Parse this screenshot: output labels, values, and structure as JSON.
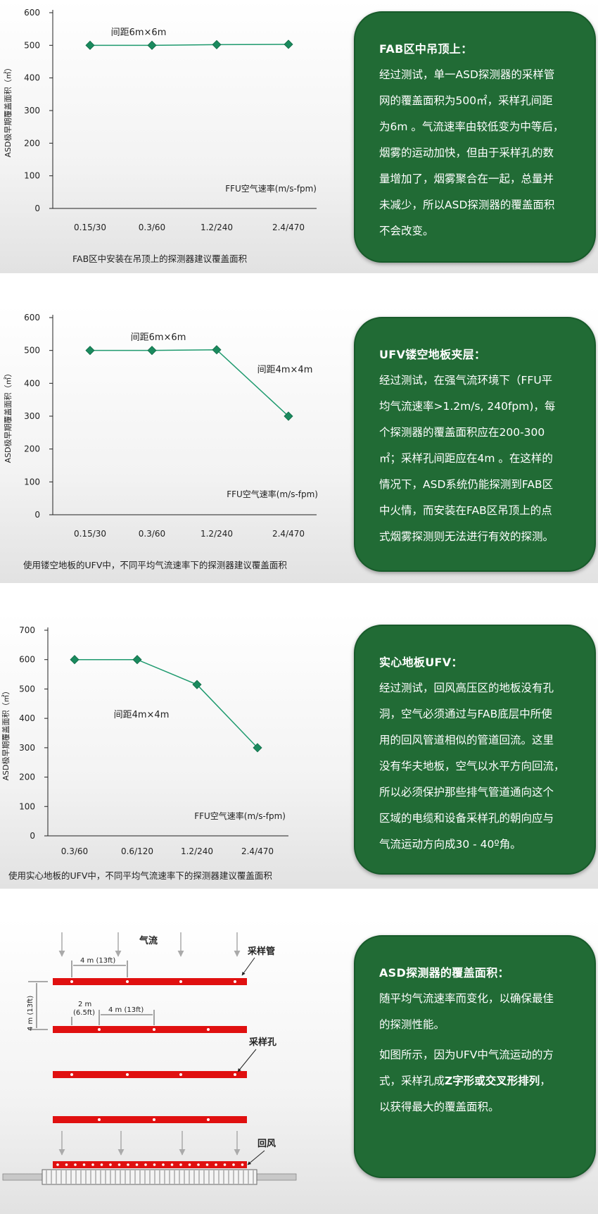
{
  "chart_data": [
    {
      "type": "line",
      "ylabel": "ASD极早期覆盖面积（㎡）",
      "xlabel": "FFU空气速率(m/s-fpm)",
      "categories": [
        "0.15/30",
        "0.3/60",
        "1.2/240",
        "2.4/470"
      ],
      "ylim": [
        0,
        600
      ],
      "yticks": [
        0,
        100,
        200,
        300,
        400,
        500,
        600
      ],
      "series": [
        {
          "values": [
            500,
            500,
            502,
            503
          ]
        }
      ],
      "annotations": [
        "间距6m×6m"
      ],
      "grid": false
    },
    {
      "type": "line",
      "ylabel": "ASD极早期覆盖面积（㎡）",
      "xlabel": "FFU空气速率(m/s-fpm)",
      "categories": [
        "0.15/30",
        "0.3/60",
        "1.2/240",
        "2.4/470"
      ],
      "ylim": [
        0,
        600
      ],
      "yticks": [
        0,
        100,
        200,
        300,
        400,
        500,
        600
      ],
      "series": [
        {
          "values": [
            500,
            500,
            502,
            300
          ]
        }
      ],
      "annotations": [
        "间距6m×6m",
        "间距4m×4m"
      ],
      "grid": false
    },
    {
      "type": "line",
      "ylabel": "ASD极早期覆盖面积（㎡）",
      "xlabel": "FFU空气速率(m/s-fpm)",
      "categories": [
        "0.3/60",
        "0.6/120",
        "1.2/240",
        "2.4/470"
      ],
      "ylim": [
        0,
        700
      ],
      "yticks": [
        0,
        100,
        200,
        300,
        400,
        500,
        600,
        700
      ],
      "series": [
        {
          "values": [
            600,
            600,
            515,
            300
          ]
        }
      ],
      "annotations": [
        "间距4m×4m"
      ],
      "grid": false
    }
  ],
  "colors": {
    "series": "#1e9a6e",
    "marker": "#1a8a5e",
    "card_bg": "#216b35",
    "pipe": "#e01010",
    "arrow": "#aaaaaa"
  },
  "captions": {
    "c1": "FAB区中安装在吊顶上的探测器建议覆盖面积",
    "c2": "使用镂空地板的UFV中，不同平均气流速率下的探测器建议覆盖面积",
    "c3": "使用实心地板的UFV中，不同平均气流速率下的探测器建议覆盖面积"
  },
  "cards": {
    "card1": {
      "title": "FAB区中吊顶上：",
      "lines": [
        "经过测试，单一ASD探测器的采样管",
        "网的覆盖面积为500㎡，采样孔间距",
        "为6m 。气流速率由较低变为中等后，",
        "烟雾的运动加快，但由于采样孔的数",
        "量增加了，烟雾聚合在一起，总量并",
        "未减少，所以ASD探测器的覆盖面积",
        "不会改变。"
      ]
    },
    "card2": {
      "title": "UFV镂空地板夹层：",
      "lines": [
        "经过测试，在强气流环境下（FFU平",
        "均气流速率>1.2m/s, 240fpm)，每",
        "个探测器的覆盖面积应在200-300",
        "㎡；采样孔间距应在4m 。在这样的",
        "情况下，ASD系统仍能探测到FAB区",
        "中火情，而安装在FAB区吊顶上的点",
        "式烟雾探测则无法进行有效的探测。"
      ]
    },
    "card3": {
      "title": "实心地板UFV：",
      "lines": [
        "经过测试，回风高压区的地板没有孔",
        "洞，空气必须通过与FAB底层中所使",
        "用的回风管道相似的管道回流。这里",
        "没有华夫地板，空气以水平方向回流，",
        "所以必须保护那些排气管道通向这个",
        "区域的电缆和设备采样孔的朝向应与",
        "气流运动方向成30 - 40º角。"
      ]
    },
    "card4": {
      "title": "ASD探测器的覆盖面积：",
      "p1": [
        "随平均气流速率而变化，以确保最佳",
        "的探测性能。"
      ],
      "p2_l1": "如图所示，因为UFV中气流运动的方",
      "p2_l2_pre": "式，采样孔成",
      "p2_l2_bold": "Z字形或交叉形排列",
      "p2_l2_post": "，",
      "p2_l3": "以获得最大的覆盖面积。"
    }
  },
  "diagram": {
    "airflow": "气流",
    "pipe_label": "采样管",
    "hole_label": "采样孔",
    "return_label": "回风",
    "spacing_4m": "4 m (13ft)",
    "spacing_2m": "2 m",
    "spacing_2m_ft": "(6.5ft)",
    "vertical_4m": "4 m (13ft)"
  }
}
